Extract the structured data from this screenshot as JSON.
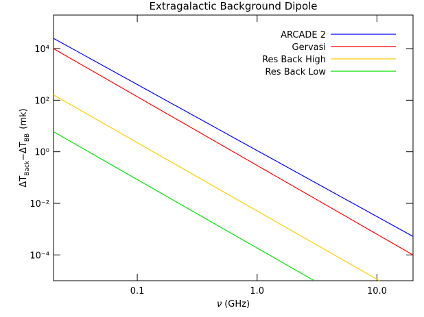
{
  "chart_data": {
    "type": "line",
    "title": "Extragalactic Background Dipole",
    "x_label": [
      "ν",
      "(GHz)"
    ],
    "y_label": [
      "ΔT",
      "Back",
      "−ΔT",
      "BB",
      "(mk)"
    ],
    "x_log": true,
    "y_log": true,
    "xlim": [
      0.02,
      20
    ],
    "ylim": [
      1e-05,
      200000
    ],
    "xticks": [
      0.1,
      {
        "value": 1,
        "label": "1.0"
      },
      {
        "value": 10,
        "label": "10.0"
      }
    ],
    "yticks": [
      {
        "value": 0.0001,
        "label": "10⁻⁴"
      },
      {
        "value": 0.01,
        "label": "10⁻²"
      },
      {
        "value": 1,
        "label": "10⁰"
      },
      {
        "value": 100,
        "label": "10²"
      },
      {
        "value": 10000,
        "label": "10⁴"
      }
    ],
    "legend": "upper right",
    "series": [
      {
        "name": "ARCADE 2",
        "color": "#0000ff",
        "x": [
          0.02,
          20
        ],
        "values": [
          25000,
          0.00052
        ]
      },
      {
        "name": "Gervasi",
        "color": "#ff0000",
        "x": [
          0.02,
          20
        ],
        "values": [
          10000,
          0.0001
        ]
      },
      {
        "name": "Res Back High",
        "color": "#ffcc00",
        "x": [
          0.02,
          10.5
        ],
        "values": [
          160,
          1e-05
        ]
      },
      {
        "name": "Res Back Low",
        "color": "#00e000",
        "x": [
          0.02,
          3
        ],
        "values": [
          6,
          1e-05
        ]
      }
    ]
  }
}
